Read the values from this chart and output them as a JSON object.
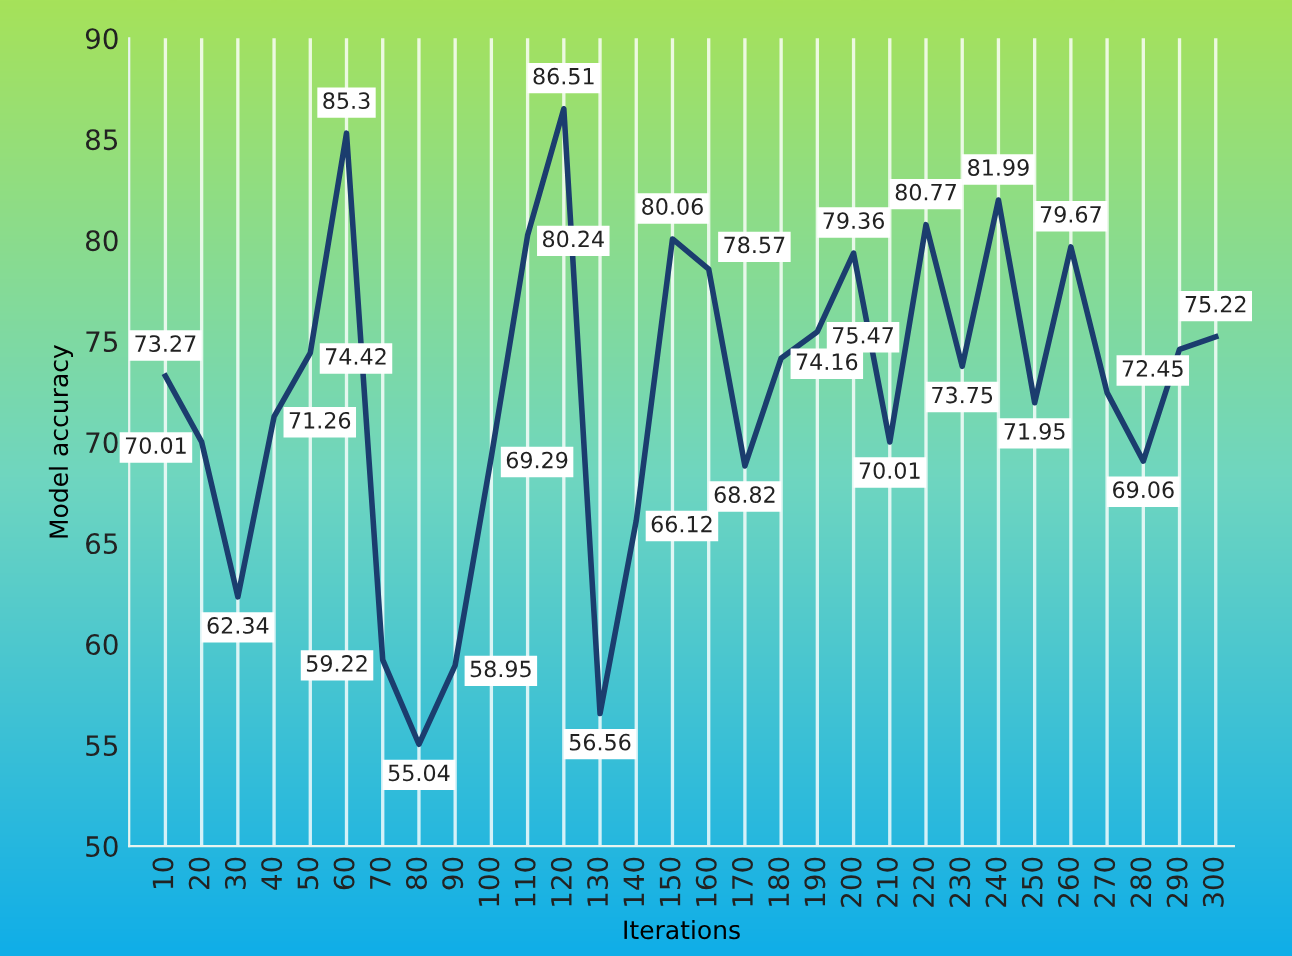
{
  "chart_data": {
    "type": "line",
    "xlabel": "Iterations",
    "ylabel": "Model accuracy",
    "categories": [
      "10",
      "20",
      "30",
      "40",
      "50",
      "60",
      "70",
      "80",
      "90",
      "100",
      "110",
      "120",
      "130",
      "140",
      "150",
      "160",
      "170",
      "180",
      "190",
      "200",
      "210",
      "220",
      "230",
      "240",
      "250",
      "260",
      "270",
      "280",
      "290",
      "300"
    ],
    "series": [
      {
        "color": "#1b3d6e",
        "values": [
          73.27,
          70.01,
          62.34,
          71.26,
          74.42,
          85.3,
          59.22,
          55.04,
          58.95,
          69.29,
          80.24,
          86.51,
          56.56,
          66.12,
          80.06,
          78.57,
          68.82,
          74.16,
          75.47,
          79.36,
          70.01,
          80.77,
          73.75,
          81.99,
          71.95,
          79.67,
          72.45,
          69.06,
          74.6,
          75.22
        ],
        "value_labels": [
          "73.27",
          "70.01",
          "62.34",
          "71.26",
          "74.42",
          "85.3",
          "59.22",
          "55.04",
          "58.95",
          "69.29",
          "80.24",
          "86.51",
          "56.56",
          "66.12",
          "80.06",
          "78.57",
          "68.82",
          "74.16",
          "75.47",
          "79.36",
          "70.01",
          "80.77",
          "73.75",
          "81.99",
          "71.95",
          "79.67",
          "72.45",
          "69.06",
          null,
          "75.22"
        ]
      }
    ],
    "ylim": [
      50,
      90
    ],
    "yticks": [
      50,
      55,
      60,
      65,
      70,
      75,
      80,
      85,
      90
    ],
    "grid": "x",
    "legend": false,
    "marker": "none",
    "line_style": "solid"
  }
}
